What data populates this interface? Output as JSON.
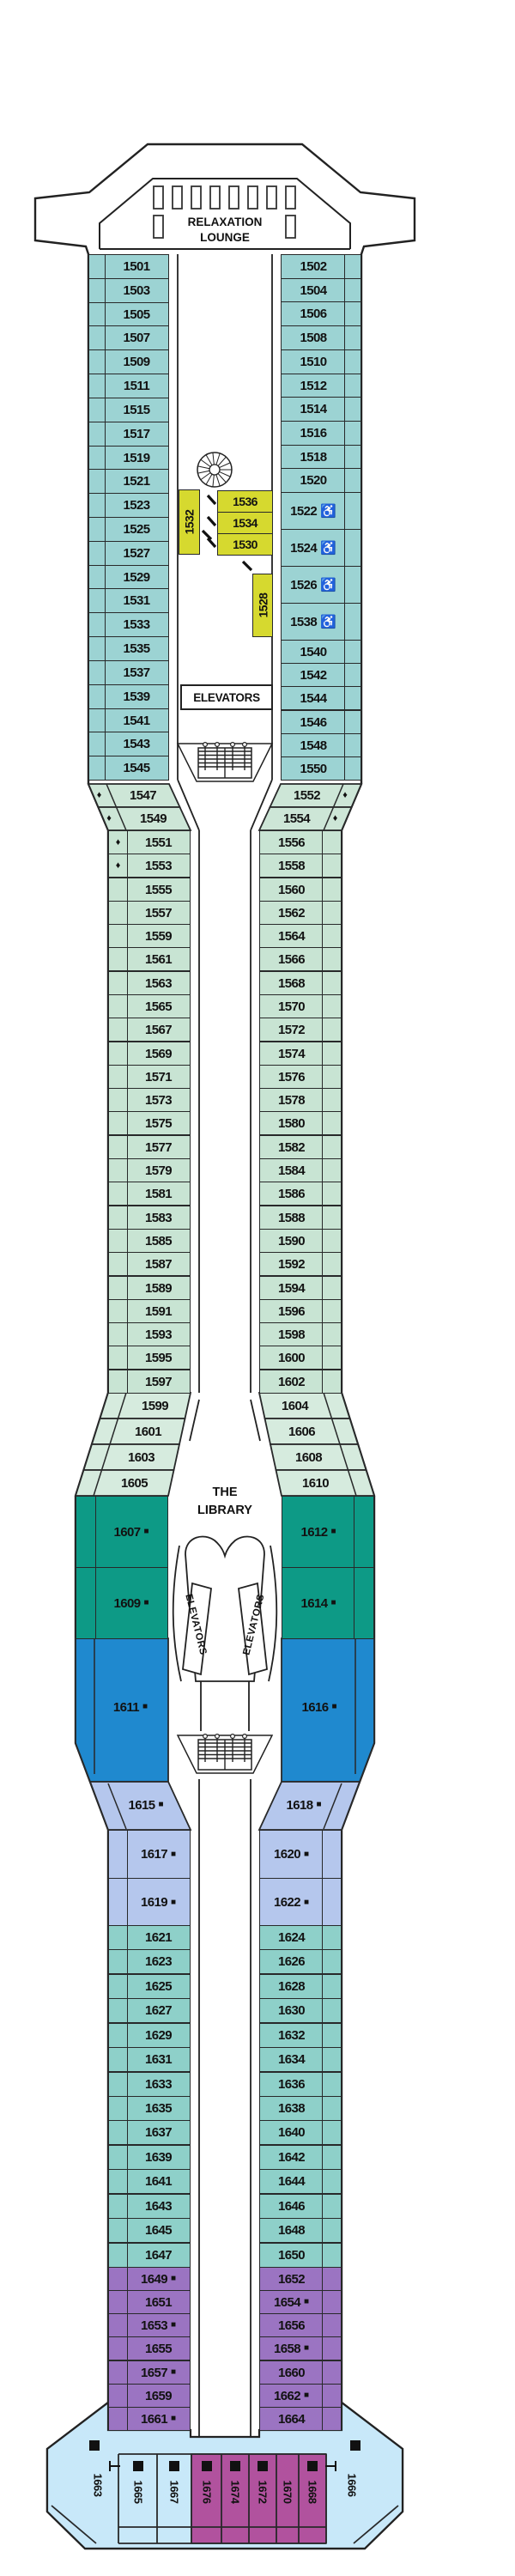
{
  "labels": {
    "relaxation_lounge_line1": "RELAXATION",
    "relaxation_lounge_line2": "LOUNGE",
    "elevators_bow": "ELEVATORS",
    "library_line1": "THE",
    "library_line2": "LIBRARY",
    "elevators_bank_left": "ELEVATORS",
    "elevators_bank_right": "ELEVATORS"
  },
  "symbols": {
    "accessible": "♿",
    "diamond": "♦",
    "square": "■"
  },
  "colors": {
    "teal": "#9cd3d3",
    "teal_lower": "#8ed0c9",
    "green_light": "#c8e4d3",
    "green_pale": "#cde6d7",
    "green_pale2": "#d6ebde",
    "green_dark": "#0d9a86",
    "blue": "#1f89cf",
    "lavender": "#b5c7ed",
    "purple": "#9b74c2",
    "light_blue": "#c8e8f9",
    "magenta": "#b1529e",
    "yellow": "#d6d92f"
  },
  "sections": {
    "bow_left": [
      "1501",
      "1503",
      "1505",
      "1507",
      "1509",
      "1511",
      "1515",
      "1517",
      "1519",
      "1521",
      "1523",
      "1525",
      "1527",
      "1529",
      "1531",
      "1533",
      "1535",
      "1537",
      "1539",
      "1541",
      "1543",
      "1545"
    ],
    "bow_right_upper": [
      "1502",
      "1504",
      "1506",
      "1508",
      "1510",
      "1512",
      "1514",
      "1516",
      "1518",
      "1520"
    ],
    "bow_right_accessible": [
      "1522",
      "1524",
      "1526",
      "1538"
    ],
    "bow_right_lower": [
      "1540",
      "1542",
      "1544",
      "1546",
      "1548",
      "1550"
    ],
    "center_yellow_vertical_left": "1532",
    "center_yellow_stack": [
      "1536",
      "1534",
      "1530"
    ],
    "center_yellow_vertical_right": "1528",
    "transition_left": [
      "1547",
      "1549"
    ],
    "transition_right": [
      "1552",
      "1554"
    ],
    "waist_left": [
      "1551",
      "1553",
      "1555",
      "1557",
      "1559",
      "1561",
      "1563",
      "1565",
      "1567",
      "1569",
      "1571",
      "1573",
      "1575",
      "1577",
      "1579",
      "1581",
      "1583",
      "1585",
      "1587",
      "1589",
      "1591",
      "1593",
      "1595",
      "1597"
    ],
    "waist_right": [
      "1556",
      "1558",
      "1560",
      "1562",
      "1564",
      "1566",
      "1568",
      "1570",
      "1572",
      "1574",
      "1576",
      "1578",
      "1580",
      "1582",
      "1584",
      "1586",
      "1588",
      "1590",
      "1592",
      "1594",
      "1596",
      "1598",
      "1600",
      "1602"
    ],
    "angled_left": [
      "1599",
      "1601",
      "1603",
      "1605"
    ],
    "angled_right": [
      "1604",
      "1606",
      "1608",
      "1610"
    ],
    "suites_green_left": [
      "1607",
      "1609"
    ],
    "suites_green_right": [
      "1612",
      "1614"
    ],
    "suites_blue_left": "1611",
    "suites_blue_right": "1616",
    "lavender_angled_left": "1615",
    "lavender_angled_right": "1618",
    "lavender_left": [
      "1617",
      "1619"
    ],
    "lavender_right": [
      "1620",
      "1622"
    ],
    "lower_left": [
      "1621",
      "1623",
      "1625",
      "1627",
      "1629",
      "1631",
      "1633",
      "1635",
      "1637",
      "1639",
      "1641",
      "1643",
      "1645",
      "1647"
    ],
    "lower_right": [
      "1624",
      "1626",
      "1628",
      "1630",
      "1632",
      "1634",
      "1636",
      "1638",
      "1640",
      "1642",
      "1644",
      "1646",
      "1648",
      "1650"
    ],
    "purple_left": [
      "1649",
      "1651",
      "1653",
      "1655",
      "1657",
      "1659",
      "1661"
    ],
    "purple_right": [
      "1652",
      "1654",
      "1656",
      "1658",
      "1660",
      "1662",
      "1664"
    ],
    "stern_corner_left": "1663",
    "stern_corner_right": "1666",
    "stern_vertical": [
      {
        "n": "1665",
        "c": "light_blue"
      },
      {
        "n": "1667",
        "c": "light_blue"
      },
      {
        "n": "1676",
        "c": "magenta"
      },
      {
        "n": "1674",
        "c": "magenta"
      },
      {
        "n": "1672",
        "c": "magenta"
      },
      {
        "n": "1670",
        "c": "magenta"
      },
      {
        "n": "1668",
        "c": "magenta"
      }
    ]
  },
  "accessible_cabins": [
    "1522",
    "1524",
    "1526",
    "1538"
  ],
  "diamond_cabins": [
    "1547",
    "1549",
    "1551",
    "1553",
    "1552",
    "1554"
  ],
  "square_cabins": [
    "1607",
    "1609",
    "1611",
    "1612",
    "1614",
    "1616",
    "1615",
    "1617",
    "1619",
    "1618",
    "1620",
    "1622",
    "1649",
    "1653",
    "1657",
    "1661",
    "1654",
    "1658",
    "1662",
    "1663",
    "1665",
    "1667",
    "1676",
    "1674",
    "1672",
    "1668",
    "1666"
  ]
}
